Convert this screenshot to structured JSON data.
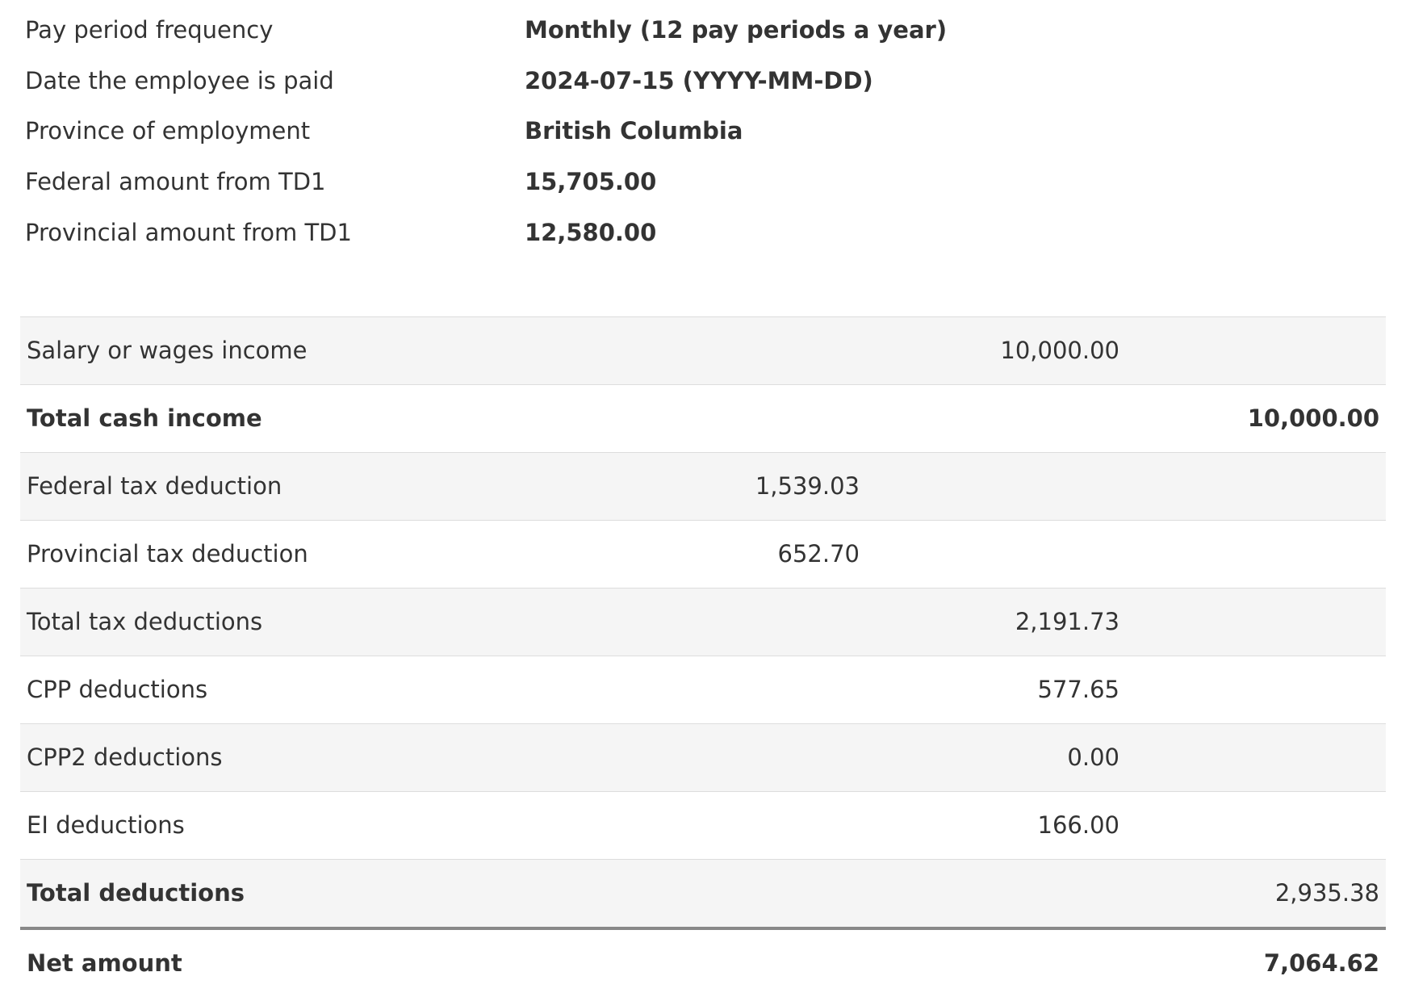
{
  "theme": {
    "text_color": "#333333",
    "stripe_background": "#f5f5f5",
    "row_border_color": "#dddddd",
    "total_border_color": "#888888",
    "background": "#ffffff"
  },
  "info": {
    "rows": [
      {
        "label": "Pay period frequency",
        "value": "Monthly (12 pay periods a year)"
      },
      {
        "label": "Date the employee is paid",
        "value": "2024-07-15 (YYYY-MM-DD)"
      },
      {
        "label": "Province of employment",
        "value": "British Columbia"
      },
      {
        "label": "Federal amount from TD1",
        "value": "15,705.00"
      },
      {
        "label": "Provincial amount from TD1",
        "value": "12,580.00"
      }
    ]
  },
  "table": {
    "rows": [
      {
        "label": "Salary or wages income",
        "itemized": "",
        "subtotal": "10,000.00",
        "total": ""
      },
      {
        "label": "Total cash income",
        "itemized": "",
        "subtotal": "",
        "total": "10,000.00"
      },
      {
        "label": "Federal tax deduction",
        "itemized": "1,539.03",
        "subtotal": "",
        "total": ""
      },
      {
        "label": "Provincial tax deduction",
        "itemized": "652.70",
        "subtotal": "",
        "total": ""
      },
      {
        "label": "Total tax deductions",
        "itemized": "",
        "subtotal": "2,191.73",
        "total": ""
      },
      {
        "label": "CPP deductions",
        "itemized": "",
        "subtotal": "577.65",
        "total": ""
      },
      {
        "label": "CPP2 deductions",
        "itemized": "",
        "subtotal": "0.00",
        "total": ""
      },
      {
        "label": "EI deductions",
        "itemized": "",
        "subtotal": "166.00",
        "total": ""
      },
      {
        "label": "Total deductions",
        "itemized": "",
        "subtotal": "",
        "total": "2,935.38"
      },
      {
        "label": "Net amount",
        "itemized": "",
        "subtotal": "",
        "total": "7,064.62"
      }
    ]
  }
}
